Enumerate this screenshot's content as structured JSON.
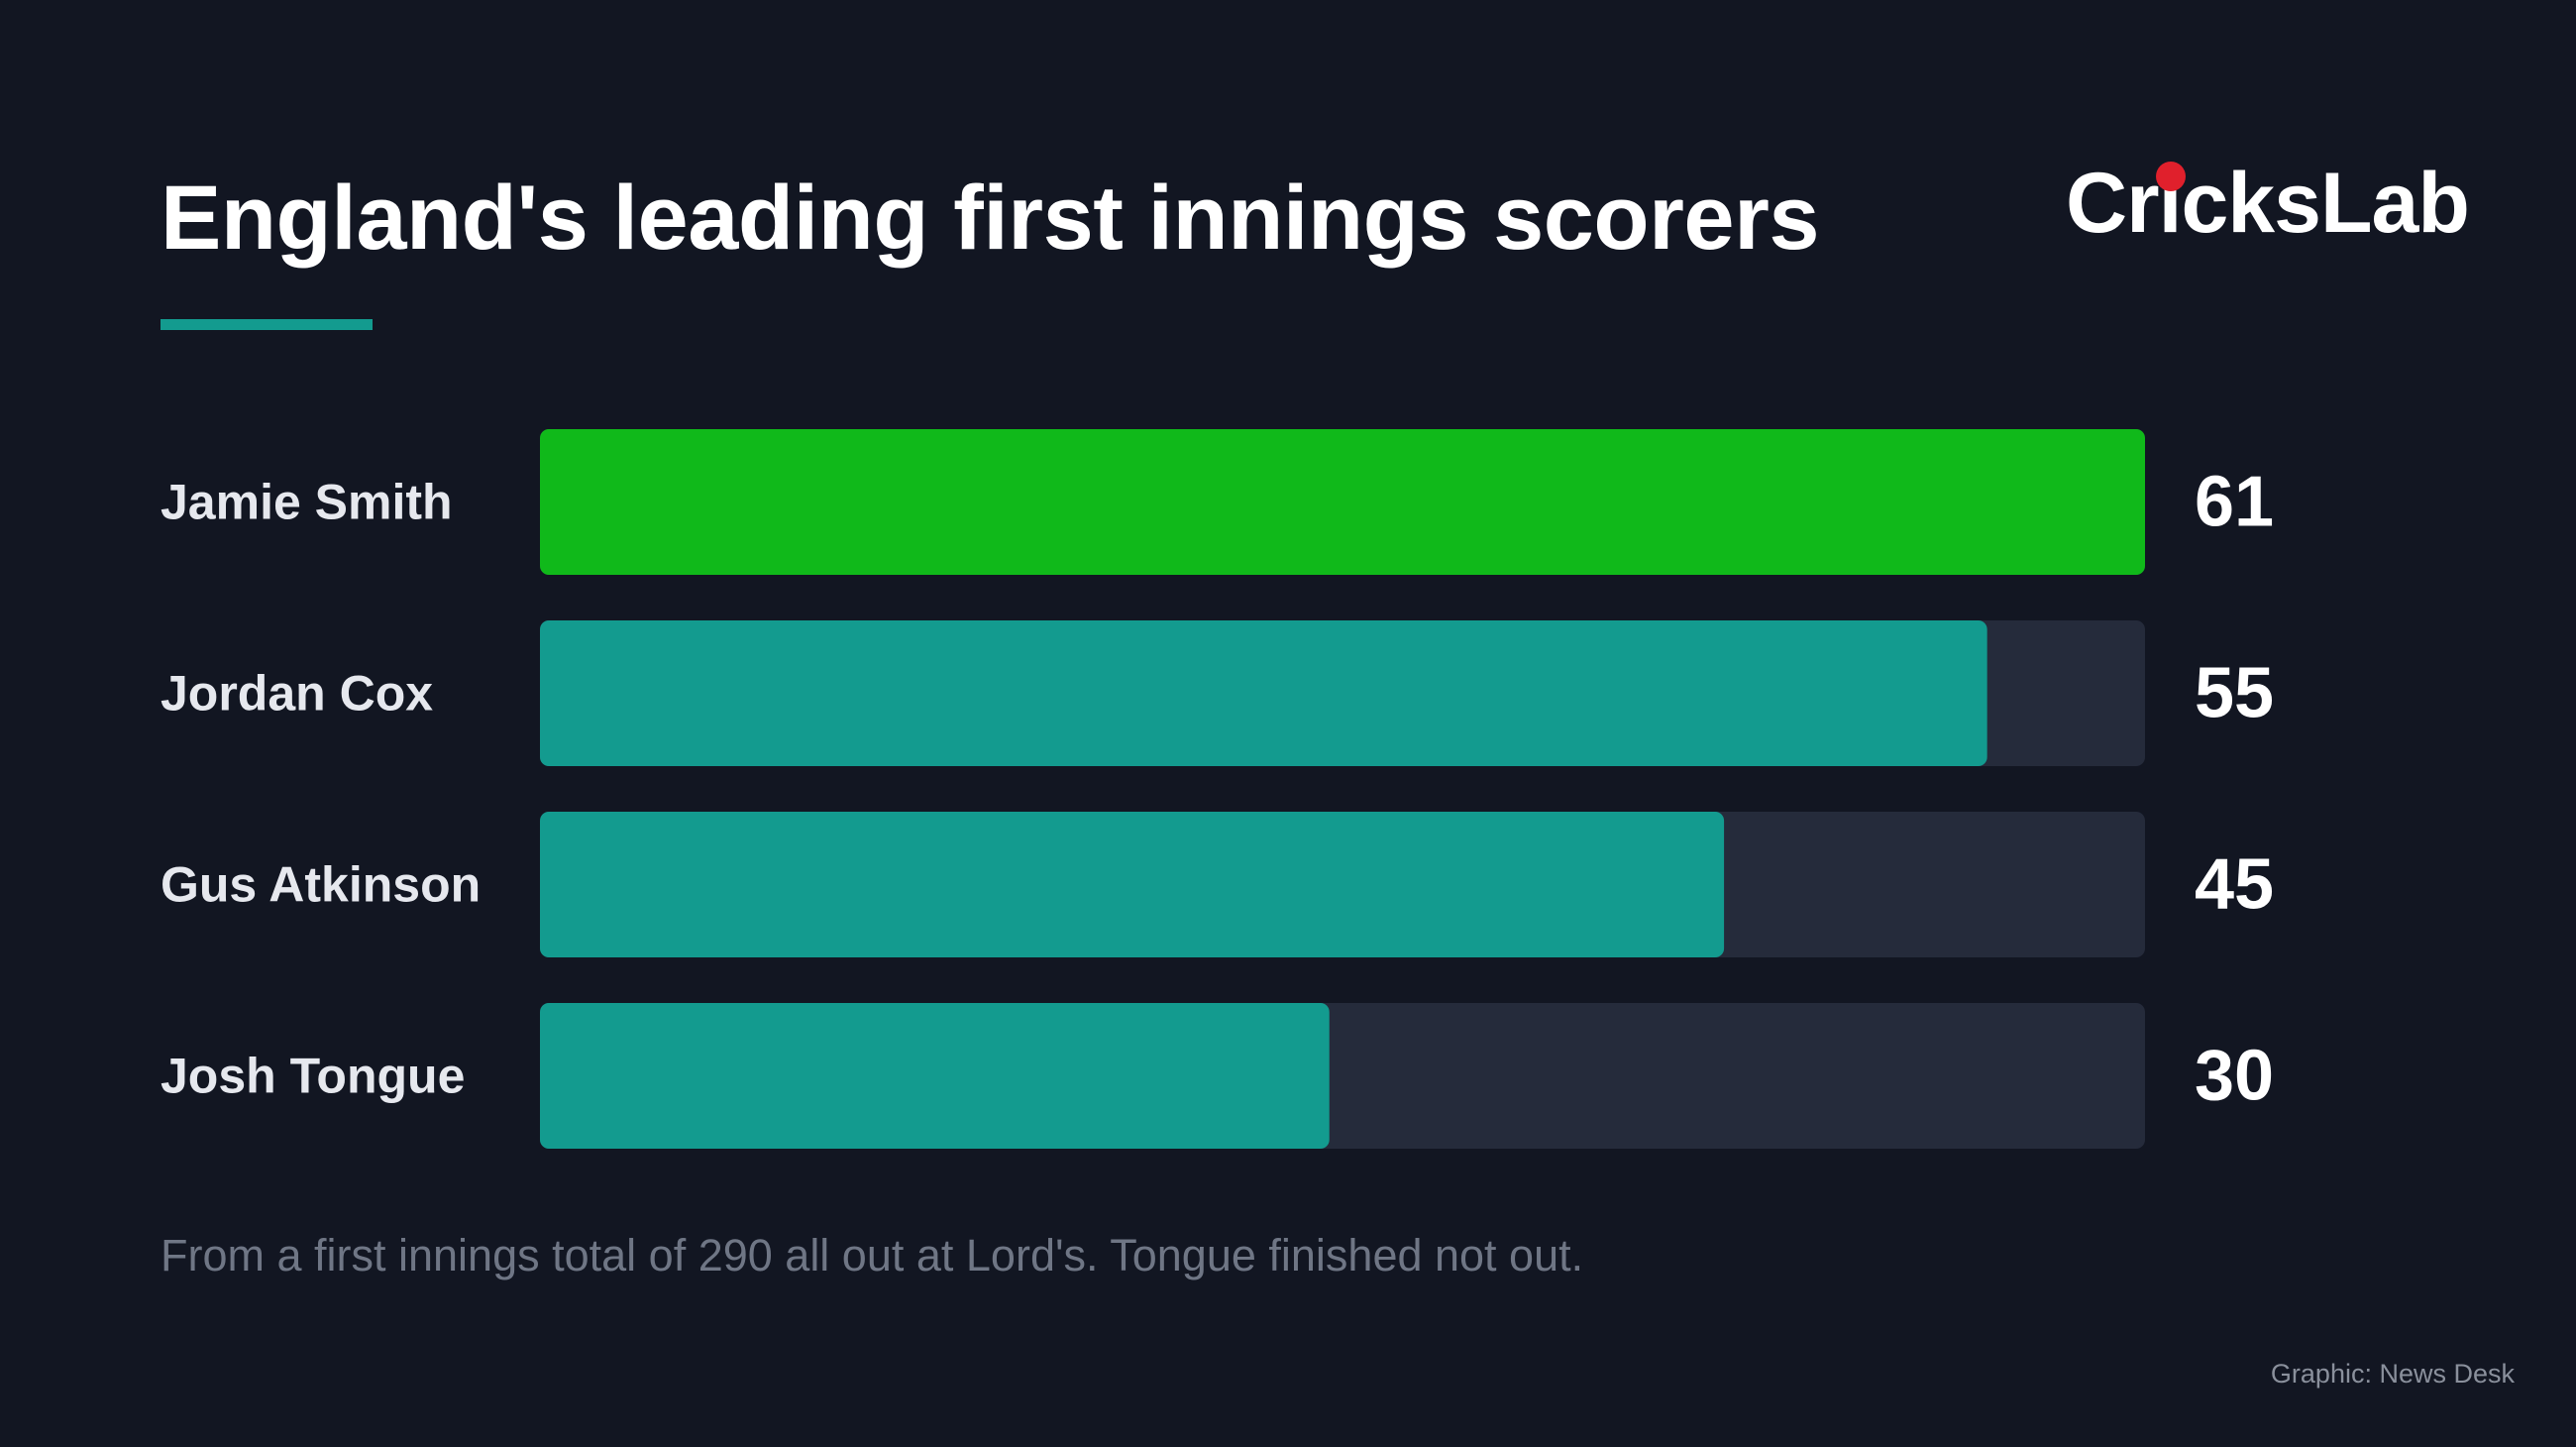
{
  "colors": {
    "background": "#121622",
    "text": "#ffffff",
    "label": "#e6e8ee",
    "muted": "#6f7685",
    "credit_text": "#8a909c",
    "accent": "#139b8f",
    "highlight": "#10b91a",
    "track": "#252b3b",
    "logo_ball": "#e0202c"
  },
  "header": {
    "title": "England's leading first innings scorers"
  },
  "logo": {
    "text": "CricksLab"
  },
  "chart_data": {
    "type": "bar",
    "orientation": "horizontal",
    "categories": [
      "Jamie Smith",
      "Jordan Cox",
      "Gus Atkinson",
      "Josh Tongue"
    ],
    "values": [
      61,
      55,
      45,
      30
    ],
    "value_labels": [
      "61",
      "55",
      "45",
      "30"
    ],
    "highlighted": "Jamie Smith",
    "xlim": [
      0,
      61
    ],
    "grid": false,
    "legend": "none",
    "title": "England's leading first innings scorers",
    "xlabel": "",
    "ylabel": ""
  },
  "footnote": "From a first innings total of 290 all out at Lord's. Tongue finished not out.",
  "credit": "Graphic: News Desk"
}
